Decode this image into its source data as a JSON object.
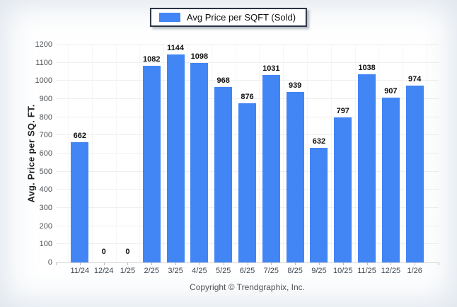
{
  "chart_data": {
    "type": "bar",
    "title": "",
    "legend": {
      "label": "Avg Price per SQFT (Sold)",
      "position": "top-center"
    },
    "categories": [
      "11/24",
      "12/24",
      "1/25",
      "2/25",
      "3/25",
      "4/25",
      "5/25",
      "6/25",
      "7/25",
      "8/25",
      "9/25",
      "10/25",
      "11/25",
      "12/25",
      "1/26"
    ],
    "values": [
      662,
      0,
      0,
      1082,
      1144,
      1098,
      968,
      876,
      1031,
      939,
      632,
      797,
      1038,
      907,
      974
    ],
    "ylabel": "Avg. Price per SQ. FT.",
    "xlabel": "",
    "ylim": [
      0,
      1200
    ],
    "ytick_step": 100,
    "grid": true,
    "value_labels": true,
    "colors": {
      "bar": "#4285F4",
      "grid_horizontal": "#efefef",
      "grid_vertical": "#f6f6f6",
      "axis_line": "#d6d6d6",
      "tick_mark": "#b9bdc4",
      "legend_border": "#2b3346"
    }
  },
  "footer": {
    "copyright": "Copyright © Trendgraphix, Inc."
  }
}
